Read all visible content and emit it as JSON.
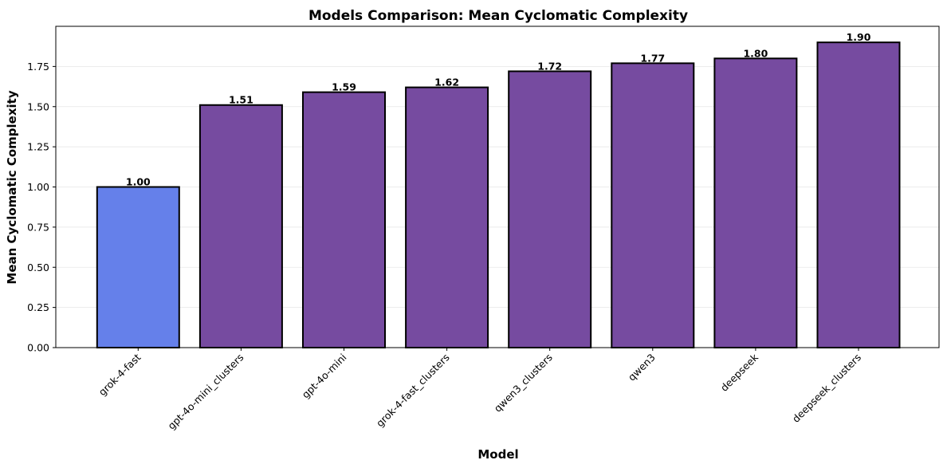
{
  "chart_data": {
    "type": "bar",
    "title": "Models Comparison: Mean Cyclomatic Complexity",
    "xlabel": "Model",
    "ylabel": "Mean Cyclomatic Complexity",
    "categories": [
      "grok-4-fast",
      "gpt-4o-mini_clusters",
      "gpt-4o-mini",
      "grok-4-fast_clusters",
      "qwen3_clusters",
      "qwen3",
      "deepseek",
      "deepseek_clusters"
    ],
    "values": [
      1.0,
      1.51,
      1.59,
      1.62,
      1.72,
      1.77,
      1.8,
      1.9
    ],
    "data_labels": [
      "1.00",
      "1.51",
      "1.59",
      "1.62",
      "1.72",
      "1.77",
      "1.80",
      "1.90"
    ],
    "bar_colors": [
      "#6580ea",
      "#764ba0",
      "#764ba0",
      "#764ba0",
      "#764ba0",
      "#764ba0",
      "#764ba0",
      "#764ba0"
    ],
    "edge_color": "#000000",
    "ylim": [
      0,
      2.0
    ],
    "yticks": [
      0.0,
      0.25,
      0.5,
      0.75,
      1.0,
      1.25,
      1.5,
      1.75
    ],
    "ytick_labels": [
      "0.00",
      "0.25",
      "0.50",
      "0.75",
      "1.00",
      "1.25",
      "1.50",
      "1.75"
    ],
    "grid": "horizontal",
    "legend": "none"
  }
}
